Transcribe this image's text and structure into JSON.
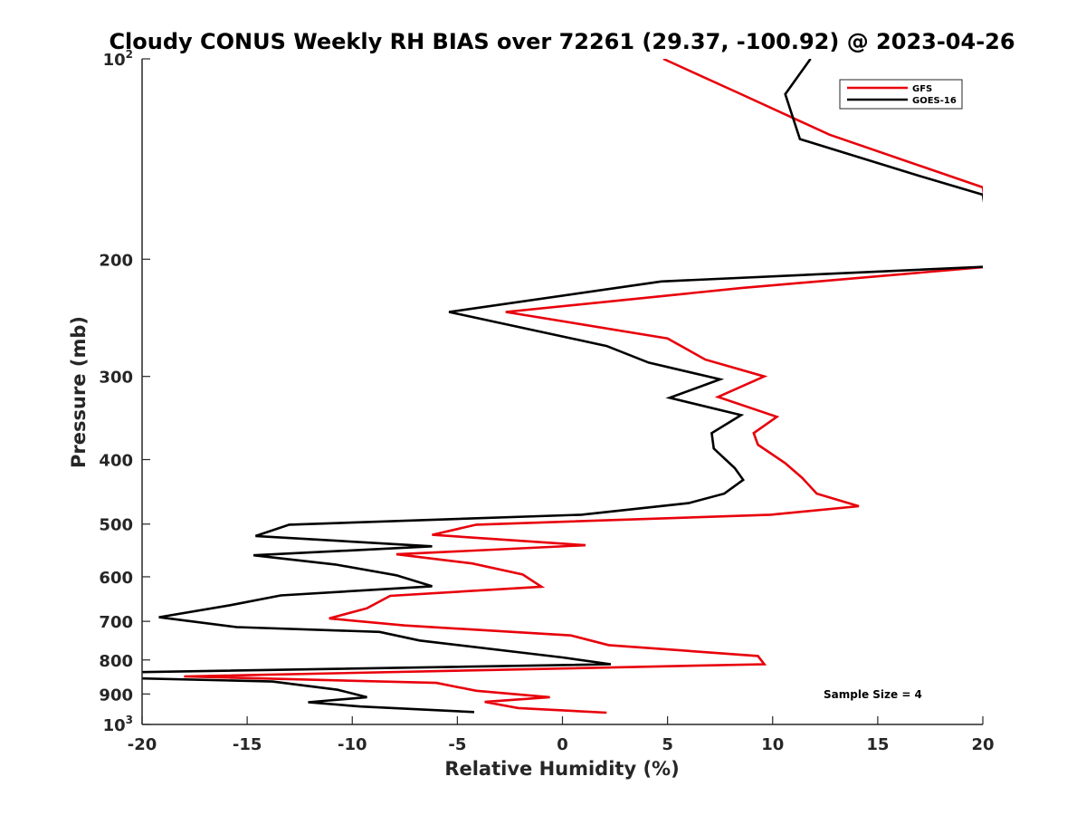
{
  "chart_data": {
    "type": "line",
    "title": "Cloudy CONUS Weekly RH BIAS over 72261 (29.37, -100.92) @ 2023-04-26",
    "xlabel": "Relative Humidity (%)",
    "ylabel": "Pressure (mb)",
    "xlim": [
      -20,
      20
    ],
    "ylim": [
      100,
      1000
    ],
    "y_scale": "log",
    "y_reversed": true,
    "x_ticks": [
      "-20",
      "-15",
      "-10",
      "-5",
      "0",
      "5",
      "10",
      "15",
      "20"
    ],
    "y_ticks": [
      {
        "base": "10",
        "exp": "2"
      },
      {
        "base": "200",
        "exp": ""
      },
      {
        "base": "300",
        "exp": ""
      },
      {
        "base": "400",
        "exp": ""
      },
      {
        "base": "500",
        "exp": ""
      },
      {
        "base": "600",
        "exp": ""
      },
      {
        "base": "700",
        "exp": ""
      },
      {
        "base": "800",
        "exp": ""
      },
      {
        "base": "900",
        "exp": ""
      },
      {
        "base": "10",
        "exp": "3"
      }
    ],
    "grid": false,
    "legend_position": "top-right",
    "annotation": "Sample Size = 4",
    "series": [
      {
        "name": "GFS",
        "color": "#e8000b",
        "points": [
          {
            "x": 4.8,
            "y": 100
          },
          {
            "x": 8.5,
            "y": 113
          },
          {
            "x": 12.7,
            "y": 130
          },
          {
            "x": 20.0,
            "y": 156
          },
          {
            "x": 20.5,
            "y": 205
          },
          {
            "x": 8.5,
            "y": 221
          },
          {
            "x": -2.7,
            "y": 240
          },
          {
            "x": 5.0,
            "y": 263
          },
          {
            "x": 6.8,
            "y": 283
          },
          {
            "x": 9.6,
            "y": 300
          },
          {
            "x": 7.4,
            "y": 322
          },
          {
            "x": 10.2,
            "y": 345
          },
          {
            "x": 9.1,
            "y": 365
          },
          {
            "x": 9.3,
            "y": 380
          },
          {
            "x": 10.6,
            "y": 405
          },
          {
            "x": 11.4,
            "y": 426
          },
          {
            "x": 12.1,
            "y": 450
          },
          {
            "x": 14.1,
            "y": 470
          },
          {
            "x": 9.9,
            "y": 484
          },
          {
            "x": -4.1,
            "y": 501
          },
          {
            "x": -6.2,
            "y": 519
          },
          {
            "x": 1.1,
            "y": 538
          },
          {
            "x": -7.9,
            "y": 555
          },
          {
            "x": -4.3,
            "y": 573
          },
          {
            "x": -1.9,
            "y": 595
          },
          {
            "x": -1.0,
            "y": 621
          },
          {
            "x": -8.2,
            "y": 641
          },
          {
            "x": -9.3,
            "y": 669
          },
          {
            "x": -11.1,
            "y": 693
          },
          {
            "x": -7.5,
            "y": 710
          },
          {
            "x": 0.4,
            "y": 735
          },
          {
            "x": 2.2,
            "y": 760
          },
          {
            "x": 9.3,
            "y": 789
          },
          {
            "x": 9.6,
            "y": 812
          },
          {
            "x": -18.0,
            "y": 847
          },
          {
            "x": -6.0,
            "y": 866
          },
          {
            "x": -4.1,
            "y": 890
          },
          {
            "x": -0.6,
            "y": 910
          },
          {
            "x": -3.7,
            "y": 925
          },
          {
            "x": -2.1,
            "y": 945
          },
          {
            "x": 2.1,
            "y": 960
          }
        ]
      },
      {
        "name": "GOES-16",
        "color": "#000000",
        "points": [
          {
            "x": 11.8,
            "y": 100
          },
          {
            "x": 10.6,
            "y": 113
          },
          {
            "x": 11.3,
            "y": 132
          },
          {
            "x": 17.0,
            "y": 150
          },
          {
            "x": 20.0,
            "y": 160
          },
          {
            "x": 20.5,
            "y": 205
          },
          {
            "x": 4.7,
            "y": 216
          },
          {
            "x": -5.4,
            "y": 240
          },
          {
            "x": 2.1,
            "y": 270
          },
          {
            "x": 4.1,
            "y": 286
          },
          {
            "x": 7.5,
            "y": 303
          },
          {
            "x": 5.1,
            "y": 323
          },
          {
            "x": 8.5,
            "y": 343
          },
          {
            "x": 7.1,
            "y": 365
          },
          {
            "x": 7.2,
            "y": 385
          },
          {
            "x": 8.2,
            "y": 412
          },
          {
            "x": 8.6,
            "y": 429
          },
          {
            "x": 7.7,
            "y": 450
          },
          {
            "x": 6.0,
            "y": 465
          },
          {
            "x": 0.9,
            "y": 484
          },
          {
            "x": -13.0,
            "y": 501
          },
          {
            "x": -14.6,
            "y": 521
          },
          {
            "x": -6.2,
            "y": 540
          },
          {
            "x": -14.7,
            "y": 557
          },
          {
            "x": -10.8,
            "y": 575
          },
          {
            "x": -7.9,
            "y": 597
          },
          {
            "x": -6.2,
            "y": 620
          },
          {
            "x": -13.4,
            "y": 640
          },
          {
            "x": -15.8,
            "y": 662
          },
          {
            "x": -19.2,
            "y": 690
          },
          {
            "x": -15.5,
            "y": 714
          },
          {
            "x": -8.7,
            "y": 726
          },
          {
            "x": -6.8,
            "y": 748
          },
          {
            "x": 0.0,
            "y": 793
          },
          {
            "x": 2.3,
            "y": 812
          },
          {
            "x": -20.5,
            "y": 835
          },
          {
            "x": -20.5,
            "y": 852
          },
          {
            "x": -13.8,
            "y": 862
          },
          {
            "x": -10.7,
            "y": 887
          },
          {
            "x": -9.3,
            "y": 910
          },
          {
            "x": -12.1,
            "y": 926
          },
          {
            "x": -9.6,
            "y": 940
          },
          {
            "x": -4.2,
            "y": 958
          }
        ]
      }
    ]
  }
}
